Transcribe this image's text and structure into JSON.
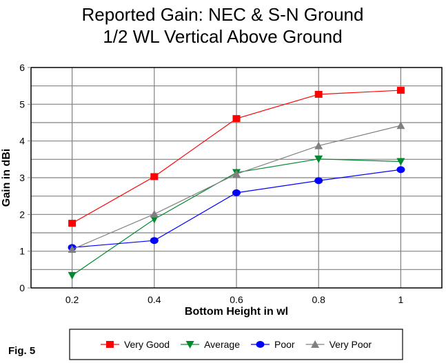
{
  "chart_data": {
    "type": "line",
    "title": [
      "Reported Gain: NEC & S-N Ground",
      "1/2 WL Vertical Above Ground"
    ],
    "xlabel": "Bottom Height in wl",
    "ylabel": "Gain in dBi",
    "x": [
      0.2,
      0.4,
      0.6,
      0.8,
      1.0
    ],
    "x_tick_labels": [
      "0.2",
      "0.4",
      "0.6",
      "0.8",
      "1"
    ],
    "y_tick_labels": [
      "0",
      "1",
      "2",
      "3",
      "4",
      "5",
      "6"
    ],
    "xlim": [
      0.1,
      1.1
    ],
    "ylim": [
      0,
      6
    ],
    "y_minor_grid_step": 0.5,
    "grid": true,
    "legend_position": "bottom",
    "series": [
      {
        "name": "Very Good",
        "color": "#ff0000",
        "marker": "square",
        "values": [
          1.76,
          3.03,
          4.61,
          5.27,
          5.38
        ]
      },
      {
        "name": "Average",
        "color": "#008a2e",
        "marker": "triangle-down",
        "values": [
          0.34,
          1.87,
          3.14,
          3.51,
          3.44
        ]
      },
      {
        "name": "Poor",
        "color": "#0000ff",
        "marker": "circle",
        "values": [
          1.1,
          1.29,
          2.59,
          2.92,
          3.22
        ]
      },
      {
        "name": "Very Poor",
        "color": "#808080",
        "marker": "triangle-up",
        "values": [
          1.05,
          2.01,
          3.1,
          3.87,
          4.42
        ]
      }
    ],
    "annotation": "Fig. 5"
  }
}
